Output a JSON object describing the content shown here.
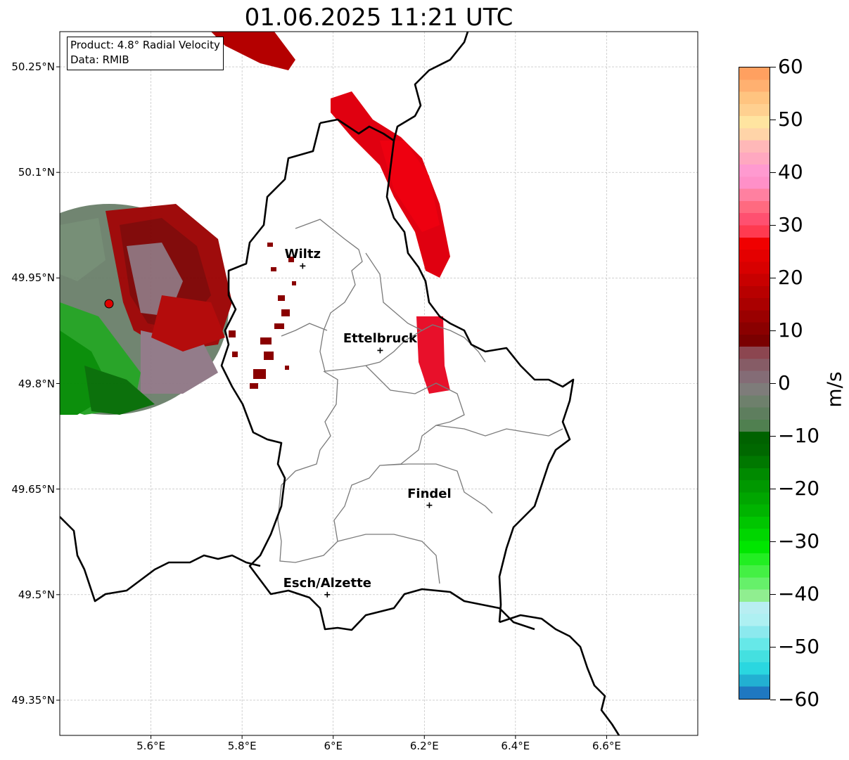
{
  "title": "01.06.2025 11:21 UTC",
  "info_box": {
    "product": "Product: 4.8° Radial Velocity",
    "data": "Data: RMIB"
  },
  "map": {
    "lon_range": [
      5.4,
      6.8
    ],
    "lat_range": [
      49.3,
      50.3
    ],
    "grid": true,
    "lat_ticks": [
      {
        "value": 50.25,
        "label": "50.25°N"
      },
      {
        "value": 50.1,
        "label": "50.1°N"
      },
      {
        "value": 49.95,
        "label": "49.95°N"
      },
      {
        "value": 49.8,
        "label": "49.8°N"
      },
      {
        "value": 49.65,
        "label": "49.65°N"
      },
      {
        "value": 49.5,
        "label": "49.5°N"
      },
      {
        "value": 49.35,
        "label": "49.35°N"
      }
    ],
    "lon_ticks": [
      {
        "value": 5.6,
        "label": "5.6°E"
      },
      {
        "value": 5.8,
        "label": "5.8°E"
      },
      {
        "value": 6.0,
        "label": "6°E"
      },
      {
        "value": 6.2,
        "label": "6.2°E"
      },
      {
        "value": 6.4,
        "label": "6.4°E"
      },
      {
        "value": 6.6,
        "label": "6.6°E"
      }
    ],
    "cities": [
      {
        "name": "Wiltz",
        "lon": 5.933,
        "lat": 49.967
      },
      {
        "name": "Ettelbruck",
        "lon": 6.103,
        "lat": 49.847
      },
      {
        "name": "Findel",
        "lon": 6.211,
        "lat": 49.627
      },
      {
        "name": "Esch/Alzette",
        "lon": 5.987,
        "lat": 49.5
      }
    ],
    "radar_site": {
      "lon": 5.506,
      "lat": 49.914
    }
  },
  "colorbar": {
    "unit": "m/s",
    "min": -60,
    "max": 60,
    "ticks": [
      {
        "value": 60,
        "label": "60"
      },
      {
        "value": 50,
        "label": "50"
      },
      {
        "value": 40,
        "label": "40"
      },
      {
        "value": 30,
        "label": "30"
      },
      {
        "value": 20,
        "label": "20"
      },
      {
        "value": 10,
        "label": "10"
      },
      {
        "value": 0,
        "label": "0"
      },
      {
        "value": -10,
        "label": "−10"
      },
      {
        "value": -20,
        "label": "−20"
      },
      {
        "value": -30,
        "label": "−30"
      },
      {
        "value": -40,
        "label": "−40"
      },
      {
        "value": -50,
        "label": "−50"
      },
      {
        "value": -60,
        "label": "−60"
      }
    ],
    "colors_bottom_to_top": [
      "#1f78c1",
      "#22b0d2",
      "#2ad7e0",
      "#44e0e0",
      "#66e8e8",
      "#8ce9ee",
      "#aef0f2",
      "#b8eef2",
      "#90ee90",
      "#66f06a",
      "#44f044",
      "#22ee22",
      "#00e600",
      "#00d600",
      "#00c600",
      "#00b400",
      "#00a600",
      "#009800",
      "#008a00",
      "#007800",
      "#006800",
      "#006200",
      "#508050",
      "#5e7e5e",
      "#6e806c",
      "#7e7c7a",
      "#846c76",
      "#865c66",
      "#8c4650",
      "#7a0000",
      "#8a0000",
      "#9a0000",
      "#aa0000",
      "#b80000",
      "#c80000",
      "#d80000",
      "#e40000",
      "#f00000",
      "#ff3a50",
      "#ff5070",
      "#ff6a80",
      "#ff80a0",
      "#ff90c8",
      "#ff9ad0",
      "#ffa8c0",
      "#ffb8b8",
      "#ffd4a8",
      "#ffe4a0",
      "#ffd090",
      "#ffc480",
      "#ffb070",
      "#ffa060"
    ]
  }
}
